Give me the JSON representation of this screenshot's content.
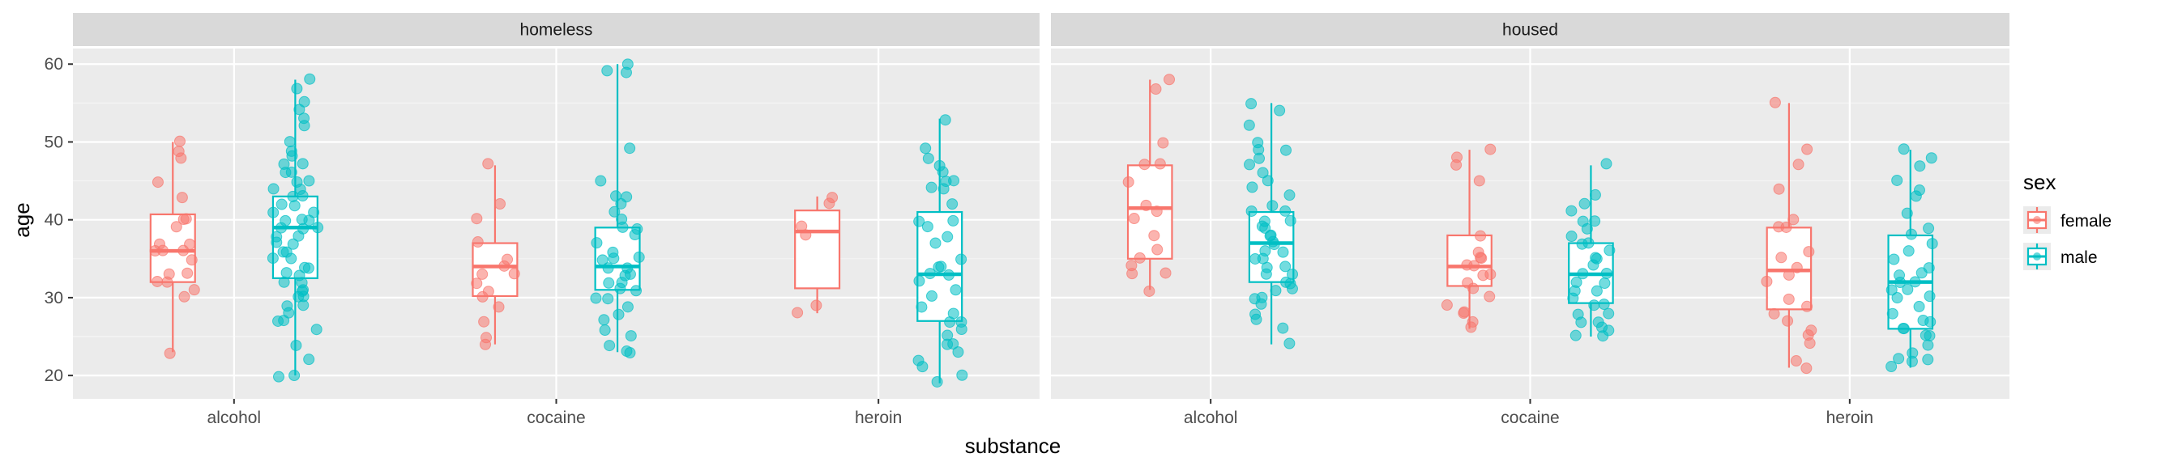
{
  "chart_data": {
    "type": "boxplot",
    "xlabel": "substance",
    "ylabel": "age",
    "ylim": [
      17,
      62
    ],
    "yticks": [
      20,
      30,
      40,
      50,
      60
    ],
    "facets": [
      "homeless",
      "housed"
    ],
    "categories": [
      "alcohol",
      "cocaine",
      "heroin"
    ],
    "legend": {
      "title": "sex",
      "position": "right",
      "entries": [
        "female",
        "male"
      ]
    },
    "colors": {
      "female": "#F8766D",
      "male": "#00BFC4"
    },
    "boxes": [
      {
        "facet": "homeless",
        "category": "alcohol",
        "sex": "female",
        "whisker_low": 23,
        "q1": 32,
        "median": 36,
        "q3": 40.7,
        "whisker_high": 50
      },
      {
        "facet": "homeless",
        "category": "alcohol",
        "sex": "male",
        "whisker_low": 20,
        "q1": 32.5,
        "median": 39,
        "q3": 43,
        "whisker_high": 58
      },
      {
        "facet": "homeless",
        "category": "cocaine",
        "sex": "female",
        "whisker_low": 24,
        "q1": 30.2,
        "median": 34,
        "q3": 37,
        "whisker_high": 47
      },
      {
        "facet": "homeless",
        "category": "cocaine",
        "sex": "male",
        "whisker_low": 23,
        "q1": 31,
        "median": 34,
        "q3": 39,
        "whisker_high": 60
      },
      {
        "facet": "homeless",
        "category": "heroin",
        "sex": "female",
        "whisker_low": 28,
        "q1": 31.2,
        "median": 38.5,
        "q3": 41.2,
        "whisker_high": 43
      },
      {
        "facet": "homeless",
        "category": "heroin",
        "sex": "male",
        "whisker_low": 19,
        "q1": 27,
        "median": 33,
        "q3": 41,
        "whisker_high": 53
      },
      {
        "facet": "housed",
        "category": "alcohol",
        "sex": "female",
        "whisker_low": 31,
        "q1": 35,
        "median": 41.5,
        "q3": 47,
        "whisker_high": 58
      },
      {
        "facet": "housed",
        "category": "alcohol",
        "sex": "male",
        "whisker_low": 24,
        "q1": 32,
        "median": 37,
        "q3": 41,
        "whisker_high": 55
      },
      {
        "facet": "housed",
        "category": "cocaine",
        "sex": "female",
        "whisker_low": 26,
        "q1": 31.5,
        "median": 34,
        "q3": 38,
        "whisker_high": 49
      },
      {
        "facet": "housed",
        "category": "cocaine",
        "sex": "male",
        "whisker_low": 25,
        "q1": 29.3,
        "median": 33,
        "q3": 37,
        "whisker_high": 47
      },
      {
        "facet": "housed",
        "category": "heroin",
        "sex": "female",
        "whisker_low": 21,
        "q1": 28.5,
        "median": 33.5,
        "q3": 39,
        "whisker_high": 55
      },
      {
        "facet": "housed",
        "category": "heroin",
        "sex": "male",
        "whisker_low": 21,
        "q1": 26,
        "median": 32,
        "q3": 38,
        "whisker_high": 49
      }
    ],
    "points": [
      {
        "facet": "homeless",
        "category": "alcohol",
        "sex": "female",
        "ages": [
          50,
          49,
          48,
          45,
          43,
          40,
          40,
          39,
          37,
          37,
          36,
          36,
          36,
          35,
          33,
          33,
          32,
          32,
          31,
          30,
          23
        ]
      },
      {
        "facet": "homeless",
        "category": "alcohol",
        "sex": "male",
        "ages": [
          58,
          57,
          55,
          54,
          53,
          52,
          50,
          49,
          48,
          47,
          47,
          46,
          46,
          45,
          45,
          44,
          44,
          43,
          43,
          42,
          42,
          41,
          41,
          40,
          40,
          40,
          39,
          39,
          39,
          38,
          38,
          37,
          37,
          36,
          36,
          35,
          35,
          34,
          34,
          33,
          33,
          32,
          32,
          31,
          31,
          30,
          30,
          29,
          29,
          28,
          27,
          27,
          26,
          24,
          22,
          20,
          20
        ]
      },
      {
        "facet": "homeless",
        "category": "cocaine",
        "sex": "female",
        "ages": [
          47,
          42,
          40,
          37,
          35,
          34,
          33,
          33,
          32,
          31,
          30,
          29,
          27,
          25,
          24
        ]
      },
      {
        "facet": "homeless",
        "category": "cocaine",
        "sex": "male",
        "ages": [
          60,
          59,
          59,
          49,
          45,
          43,
          43,
          42,
          41,
          40,
          39,
          39,
          38,
          37,
          36,
          35,
          35,
          35,
          34,
          34,
          33,
          33,
          32,
          32,
          31,
          31,
          30,
          30,
          29,
          28,
          27,
          26,
          25,
          24,
          23,
          23
        ]
      },
      {
        "facet": "homeless",
        "category": "heroin",
        "sex": "female",
        "ages": [
          43,
          42,
          39,
          38,
          29,
          28
        ]
      },
      {
        "facet": "homeless",
        "category": "heroin",
        "sex": "male",
        "ages": [
          53,
          49,
          48,
          47,
          46,
          45,
          45,
          44,
          44,
          42,
          40,
          40,
          39,
          38,
          37,
          35,
          34,
          34,
          33,
          33,
          32,
          31,
          30,
          29,
          28,
          27,
          27,
          26,
          25,
          24,
          24,
          23,
          22,
          21,
          20,
          19
        ]
      },
      {
        "facet": "housed",
        "category": "alcohol",
        "sex": "female",
        "ages": [
          58,
          57,
          50,
          47,
          47,
          45,
          42,
          41,
          40,
          38,
          36,
          35,
          34,
          33,
          33,
          31
        ]
      },
      {
        "facet": "housed",
        "category": "alcohol",
        "sex": "male",
        "ages": [
          55,
          54,
          52,
          50,
          49,
          49,
          48,
          47,
          46,
          45,
          44,
          43,
          42,
          41,
          41,
          40,
          40,
          39,
          39,
          38,
          38,
          37,
          37,
          36,
          36,
          35,
          35,
          34,
          34,
          33,
          33,
          32,
          32,
          31,
          31,
          30,
          30,
          29,
          28,
          27,
          26,
          24
        ]
      },
      {
        "facet": "housed",
        "category": "cocaine",
        "sex": "female",
        "ages": [
          49,
          48,
          47,
          45,
          38,
          36,
          35,
          35,
          34,
          34,
          33,
          33,
          32,
          31,
          30,
          29,
          28,
          28,
          27,
          26
        ]
      },
      {
        "facet": "housed",
        "category": "cocaine",
        "sex": "male",
        "ages": [
          47,
          43,
          42,
          41,
          40,
          40,
          39,
          38,
          37,
          37,
          36,
          35,
          35,
          34,
          33,
          33,
          32,
          32,
          31,
          31,
          30,
          29,
          29,
          28,
          28,
          27,
          27,
          26,
          26,
          25,
          25
        ]
      },
      {
        "facet": "housed",
        "category": "heroin",
        "sex": "female",
        "ages": [
          55,
          49,
          47,
          44,
          40,
          39,
          39,
          36,
          35,
          34,
          33,
          32,
          30,
          29,
          28,
          27,
          26,
          25,
          24,
          22,
          21
        ]
      },
      {
        "facet": "housed",
        "category": "heroin",
        "sex": "male",
        "ages": [
          49,
          48,
          47,
          45,
          44,
          43,
          41,
          39,
          38,
          37,
          36,
          35,
          34,
          33,
          33,
          32,
          32,
          31,
          31,
          30,
          30,
          29,
          28,
          27,
          27,
          26,
          26,
          25,
          25,
          24,
          23,
          22,
          22,
          22,
          21
        ]
      }
    ]
  }
}
